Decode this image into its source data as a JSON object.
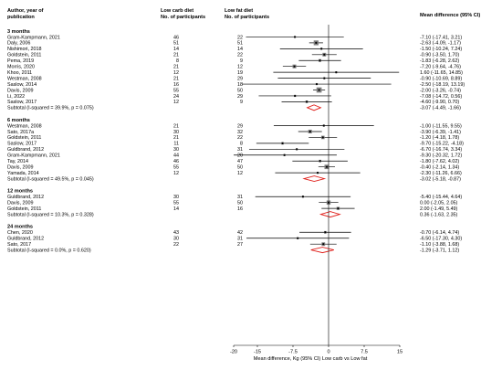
{
  "chart_data": {
    "type": "forest",
    "headers": {
      "study": "Author, year of publication",
      "low_carb": "Low carb diet No. of participants",
      "low_fat": "Low fat diet No. of participants",
      "effect": "Mean difference (95% CI)"
    },
    "xlim": [
      -20,
      15
    ],
    "xticks": [
      "-20",
      "-15",
      "-7.5",
      "0",
      "7.5",
      "15"
    ],
    "xtick_values": [
      -20,
      -15,
      -7.5,
      0,
      7.5,
      15
    ],
    "xlabel": "Mean difference, Kg (95% CI) Low carb vs Low fat",
    "groups": [
      {
        "title": "3 months",
        "studies": [
          {
            "name": "Gram-Kampmann, 2021",
            "n_lc": "46",
            "n_lf": "22",
            "md": -7.1,
            "lo": -17.41,
            "hi": 3.21,
            "ci": "-7.10 (-17.41, 3.21)"
          },
          {
            "name": "Daly, 2006",
            "n_lc": "51",
            "n_lf": "51",
            "md": -2.63,
            "lo": -4.09,
            "hi": -1.17,
            "ci": "-2.63 (-4.09, -1.17)"
          },
          {
            "name": "Nishimori, 2018",
            "n_lc": "14",
            "n_lf": "14",
            "md": -1.5,
            "lo": -10.24,
            "hi": 7.24,
            "ci": "-1.50 (-10.24, 7.24)"
          },
          {
            "name": "Goldstein, 2011",
            "n_lc": "21",
            "n_lf": "22",
            "md": -0.9,
            "lo": -3.5,
            "hi": 1.7,
            "ci": "-0.90 (-3.50, 1.70)"
          },
          {
            "name": "Pema, 2019",
            "n_lc": "8",
            "n_lf": "9",
            "md": -1.83,
            "lo": -6.28,
            "hi": 2.62,
            "ci": "-1.83 (-6.28, 2.62)"
          },
          {
            "name": "Morris, 2020",
            "n_lc": "21",
            "n_lf": "12",
            "md": -7.2,
            "lo": -9.64,
            "hi": -4.76,
            "ci": "-7.20 (-9.64, -4.76)"
          },
          {
            "name": "Khoo, 2011",
            "n_lc": "12",
            "n_lf": "19",
            "md": 1.6,
            "lo": -11.65,
            "hi": 14.85,
            "ci": "1.60 (-11.65, 14.85)"
          },
          {
            "name": "Westman, 2008",
            "n_lc": "21",
            "n_lf": "29",
            "md": -0.9,
            "lo": -10.69,
            "hi": 8.89,
            "ci": "-0.90 (-10.69, 8.89)"
          },
          {
            "name": "Saslow, 2014",
            "n_lc": "16",
            "n_lf": "18",
            "md": -2.5,
            "lo": -18.19,
            "hi": 13.19,
            "ci": "-2.50 (-18.19, 13.19)"
          },
          {
            "name": "Davis, 2009",
            "n_lc": "55",
            "n_lf": "50",
            "md": -2.0,
            "lo": -3.26,
            "hi": -0.74,
            "ci": "-2.00 (-3.26, -0.74)"
          },
          {
            "name": "Li, 2022",
            "n_lc": "24",
            "n_lf": "29",
            "md": -7.08,
            "lo": -14.72,
            "hi": 0.56,
            "ci": "-7.08 (-14.72, 0.56)"
          },
          {
            "name": "Saslow, 2017",
            "n_lc": "12",
            "n_lf": "9",
            "md": -4.6,
            "lo": -9.9,
            "hi": 0.7,
            "ci": "-4.60 (-9.90, 0.70)"
          }
        ],
        "subtotal": {
          "label": "Subtotal (I-squared = 39.9%, p = 0.075)",
          "md": -3.07,
          "lo": -4.49,
          "hi": -1.66,
          "ci": "-3.07 (-4.49, -1.66)"
        }
      },
      {
        "title": "6 months",
        "studies": [
          {
            "name": "Westman, 2008",
            "n_lc": "21",
            "n_lf": "29",
            "md": -1.0,
            "lo": -11.55,
            "hi": 9.55,
            "ci": "-1.00 (-11.55, 9.55)"
          },
          {
            "name": "Sato, 2017a",
            "n_lc": "30",
            "n_lf": "32",
            "md": -3.9,
            "lo": -6.39,
            "hi": -1.41,
            "ci": "-3.90 (-6.39, -1.41)"
          },
          {
            "name": "Goldstein, 2011",
            "n_lc": "21",
            "n_lf": "22",
            "md": -1.2,
            "lo": -4.18,
            "hi": 1.78,
            "ci": "-1.20 (-4.18, 1.78)"
          },
          {
            "name": "Saslow, 2017",
            "n_lc": "11",
            "n_lf": "8",
            "md": -9.7,
            "lo": -15.22,
            "hi": -4.18,
            "ci": "-9.70 (-15.22, -4.18)"
          },
          {
            "name": "Guldbrand, 2012",
            "n_lc": "30",
            "n_lf": "31",
            "md": -6.7,
            "lo": -16.74,
            "hi": 3.34,
            "ci": "-6.70 (-16.74, 3.34)"
          },
          {
            "name": "Gram-Kampmann, 2021",
            "n_lc": "44",
            "n_lf": "20",
            "md": -9.3,
            "lo": -20.32,
            "hi": 1.72,
            "ci": "-9.30 (-20.32, 1.72)"
          },
          {
            "name": "Tay, 2014",
            "n_lc": "46",
            "n_lf": "47",
            "md": -1.8,
            "lo": -7.62,
            "hi": 4.02,
            "ci": "-1.80 (-7.62, 4.02)"
          },
          {
            "name": "Davis, 2009",
            "n_lc": "55",
            "n_lf": "50",
            "md": -0.4,
            "lo": -2.14,
            "hi": 1.34,
            "ci": "-0.40 (-2.14, 1.34)"
          },
          {
            "name": "Yamada, 2014",
            "n_lc": "12",
            "n_lf": "12",
            "md": -2.3,
            "lo": -11.26,
            "hi": 6.66,
            "ci": "-2.30 (-11.26, 6.66)"
          }
        ],
        "subtotal": {
          "label": "Subtotal (I-squared = 49.5%, p = 0.045)",
          "md": -3.02,
          "lo": -5.18,
          "hi": -0.87,
          "ci": "-3.02 (-5.18, -0.87)"
        }
      },
      {
        "title": "12 months",
        "studies": [
          {
            "name": "Guldbrand, 2012",
            "n_lc": "30",
            "n_lf": "31",
            "md": -5.4,
            "lo": -15.44,
            "hi": 4.64,
            "ci": "-5.40 (-15.44, 4.64)"
          },
          {
            "name": "Davis, 2009",
            "n_lc": "55",
            "n_lf": "50",
            "md": 0.0,
            "lo": -2.05,
            "hi": 2.05,
            "ci": "0.00 (-2.05, 2.05)"
          },
          {
            "name": "Goldstein, 2011",
            "n_lc": "14",
            "n_lf": "16",
            "md": 2.0,
            "lo": -1.49,
            "hi": 5.49,
            "ci": "2.00 (-1.49, 5.49)"
          }
        ],
        "subtotal": {
          "label": "Subtotal (I-squared = 10.3%, p = 0.328)",
          "md": 0.36,
          "lo": -1.63,
          "hi": 2.35,
          "ci": "0.36 (-1.63, 2.35)"
        }
      },
      {
        "title": "24 months",
        "studies": [
          {
            "name": "Chen, 2020",
            "n_lc": "43",
            "n_lf": "42",
            "md": -0.7,
            "lo": -6.14,
            "hi": 4.74,
            "ci": "-0.70 (-6.14, 4.74)"
          },
          {
            "name": "Guldbrand, 2012",
            "n_lc": "30",
            "n_lf": "31",
            "md": -6.5,
            "lo": -17.3,
            "hi": 4.3,
            "ci": "-6.50 (-17.30, 4.30)"
          },
          {
            "name": "Sato, 2017",
            "n_lc": "22",
            "n_lf": "27",
            "md": -1.1,
            "lo": -3.88,
            "hi": 1.68,
            "ci": "-1.10 (-3.88, 1.68)"
          }
        ],
        "subtotal": {
          "label": "Subtotal (I-squared = 0.0%, p = 0.620)",
          "md": -1.29,
          "lo": -3.71,
          "hi": 1.12,
          "ci": "-1.29 (-3.71, 1.12)"
        }
      }
    ],
    "colors": {
      "diamond": "#e0201b",
      "line": "#000000",
      "box": "#808080"
    }
  }
}
